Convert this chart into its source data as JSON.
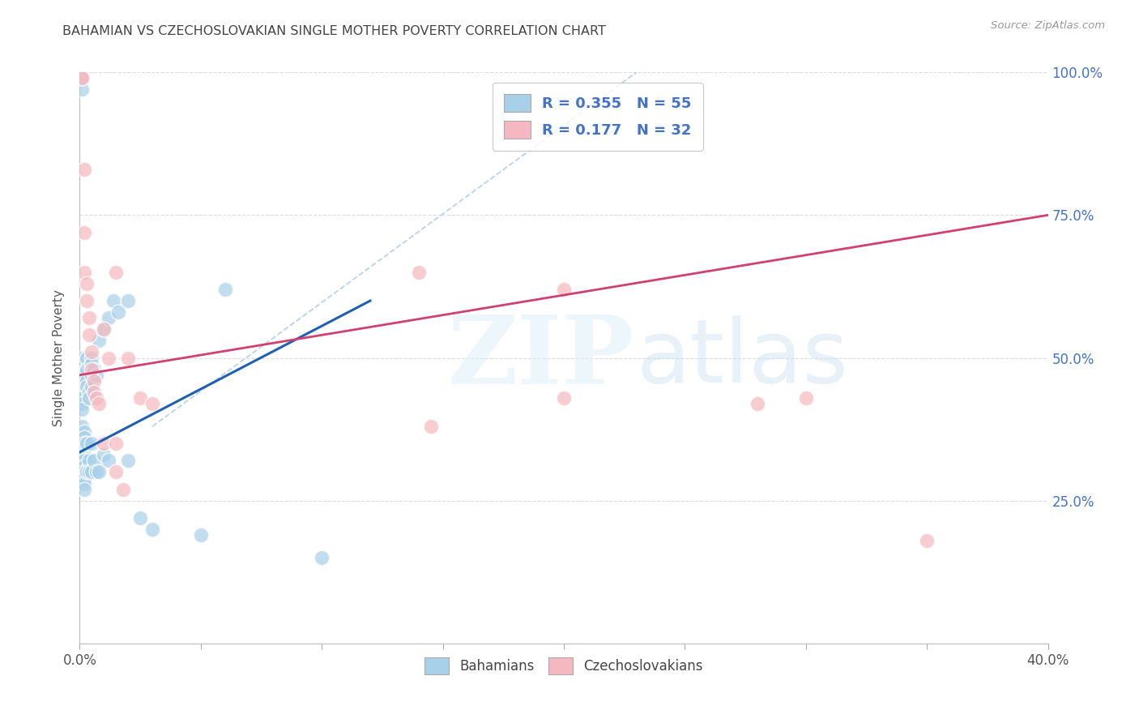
{
  "title": "BAHAMIAN VS CZECHOSLOVAKIAN SINGLE MOTHER POVERTY CORRELATION CHART",
  "source": "Source: ZipAtlas.com",
  "ylabel": "Single Mother Poverty",
  "legend_blue_r": "0.355",
  "legend_blue_n": "55",
  "legend_pink_r": "0.177",
  "legend_pink_n": "32",
  "legend_label_blue": "Bahamians",
  "legend_label_pink": "Czechoslovakians",
  "blue_scatter_color": "#a8d0e8",
  "pink_scatter_color": "#f5b8c0",
  "blue_line_color": "#2060b0",
  "pink_line_color": "#d04070",
  "legend_text_color": "#4472c4",
  "axis_label_color": "#4472c4",
  "title_color": "#444444",
  "grid_color": "#dddddd",
  "xlim": [
    0.0,
    0.4
  ],
  "ylim": [
    0.0,
    1.0
  ],
  "blue_x": [
    0.001,
    0.001,
    0.001,
    0.001,
    0.001,
    0.001,
    0.001,
    0.001,
    0.001,
    0.001,
    0.002,
    0.002,
    0.002,
    0.002,
    0.002,
    0.002,
    0.002,
    0.002,
    0.002,
    0.002,
    0.003,
    0.003,
    0.003,
    0.003,
    0.003,
    0.003,
    0.004,
    0.004,
    0.004,
    0.004,
    0.005,
    0.005,
    0.005,
    0.005,
    0.005,
    0.005,
    0.006,
    0.006,
    0.007,
    0.007,
    0.008,
    0.008,
    0.01,
    0.01,
    0.012,
    0.012,
    0.014,
    0.016,
    0.02,
    0.02,
    0.025,
    0.03,
    0.05,
    0.06,
    0.1
  ],
  "blue_y": [
    0.99,
    0.97,
    0.5,
    0.47,
    0.46,
    0.44,
    0.43,
    0.42,
    0.41,
    0.38,
    0.37,
    0.36,
    0.35,
    0.33,
    0.32,
    0.31,
    0.3,
    0.29,
    0.28,
    0.27,
    0.5,
    0.48,
    0.46,
    0.45,
    0.35,
    0.3,
    0.44,
    0.43,
    0.32,
    0.3,
    0.5,
    0.49,
    0.47,
    0.45,
    0.35,
    0.3,
    0.48,
    0.32,
    0.47,
    0.3,
    0.53,
    0.3,
    0.55,
    0.33,
    0.57,
    0.32,
    0.6,
    0.58,
    0.6,
    0.32,
    0.22,
    0.2,
    0.19,
    0.62,
    0.15
  ],
  "pink_x": [
    0.001,
    0.001,
    0.002,
    0.002,
    0.002,
    0.003,
    0.003,
    0.004,
    0.004,
    0.005,
    0.005,
    0.006,
    0.006,
    0.007,
    0.008,
    0.01,
    0.01,
    0.012,
    0.015,
    0.015,
    0.02,
    0.025,
    0.03,
    0.14,
    0.145,
    0.2,
    0.2,
    0.28,
    0.3,
    0.35,
    0.015,
    0.018
  ],
  "pink_y": [
    0.99,
    0.99,
    0.83,
    0.72,
    0.65,
    0.63,
    0.6,
    0.57,
    0.54,
    0.51,
    0.48,
    0.46,
    0.44,
    0.43,
    0.42,
    0.55,
    0.35,
    0.5,
    0.35,
    0.65,
    0.5,
    0.43,
    0.42,
    0.65,
    0.38,
    0.62,
    0.43,
    0.42,
    0.43,
    0.18,
    0.3,
    0.27
  ],
  "blue_line_x0": 0.0,
  "blue_line_y0": 0.335,
  "blue_line_x1": 0.12,
  "blue_line_y1": 0.6,
  "pink_line_x0": 0.0,
  "pink_line_y0": 0.47,
  "pink_line_x1": 0.4,
  "pink_line_y1": 0.75,
  "dash_line_x0": 0.03,
  "dash_line_y0": 0.38,
  "dash_line_x1": 0.23,
  "dash_line_y1": 1.0
}
